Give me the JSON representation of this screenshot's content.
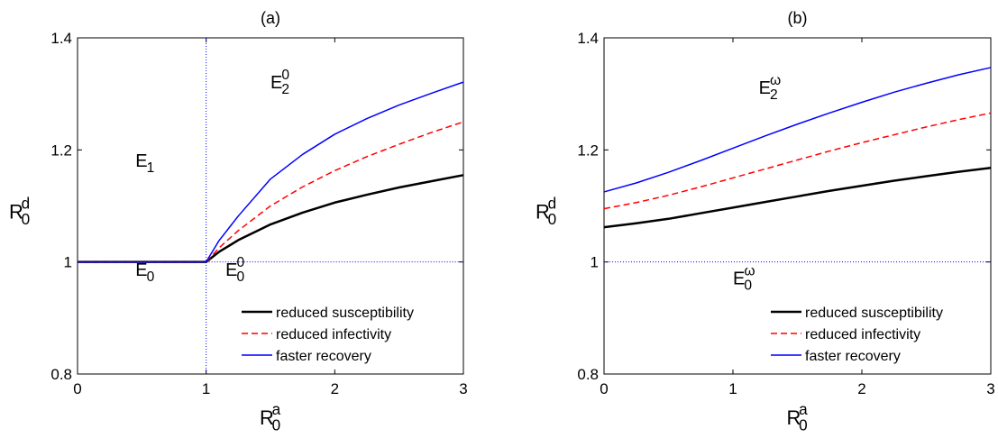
{
  "chart_data": [
    {
      "type": "line",
      "title": "(a)",
      "xlabel": {
        "main": "R",
        "sup": "a",
        "sub": "0"
      },
      "ylabel": {
        "main": "R",
        "sup": "d",
        "sub": "0"
      },
      "xlim": [
        0,
        3
      ],
      "ylim": [
        0.8,
        1.4
      ],
      "xticks": [
        "0",
        "1",
        "2",
        "3"
      ],
      "yticks": [
        "0.8",
        "1",
        "1.2",
        "1.4"
      ],
      "grid": false,
      "legend_position": "bottom-right",
      "reference_lines": [
        {
          "orientation": "vertical",
          "at": 1,
          "style": "dotted",
          "color": "#0000ff"
        },
        {
          "orientation": "horizontal",
          "at": 1,
          "from": 1,
          "style": "dotted",
          "color": "#0000ff"
        }
      ],
      "region_labels": [
        {
          "main": "E",
          "sub": "1",
          "sup": "",
          "x": 0.45,
          "y": 1.17
        },
        {
          "main": "E",
          "sub": "2",
          "sup": "0",
          "x": 1.5,
          "y": 1.31
        },
        {
          "main": "E",
          "sub": "0",
          "sup": "",
          "x": 0.45,
          "y": 0.975
        },
        {
          "main": "E",
          "sub": "0",
          "sup": "0",
          "x": 1.15,
          "y": 0.975
        }
      ],
      "series": [
        {
          "name": "reduced susceptibility",
          "color": "#000000",
          "style": "solid",
          "width": 2.5,
          "x": [
            0,
            1,
            1.1,
            1.25,
            1.5,
            1.75,
            2.0,
            2.25,
            2.5,
            2.75,
            3.0
          ],
          "y": [
            1.0,
            1.0,
            1.018,
            1.039,
            1.067,
            1.088,
            1.106,
            1.12,
            1.133,
            1.144,
            1.155
          ]
        },
        {
          "name": "reduced infectivity",
          "color": "#ff0000",
          "style": "dashed",
          "width": 1.5,
          "x": [
            0,
            1,
            1.1,
            1.25,
            1.5,
            1.75,
            2.0,
            2.25,
            2.5,
            2.75,
            3.0
          ],
          "y": [
            1.0,
            1.0,
            1.025,
            1.056,
            1.1,
            1.134,
            1.163,
            1.188,
            1.21,
            1.231,
            1.25
          ]
        },
        {
          "name": "faster recovery",
          "color": "#0000ff",
          "style": "solid",
          "width": 1.5,
          "x": [
            0,
            1,
            1.1,
            1.25,
            1.5,
            1.75,
            2.0,
            2.25,
            2.5,
            2.75,
            3.0
          ],
          "y": [
            1.0,
            1.0,
            1.038,
            1.082,
            1.148,
            1.192,
            1.228,
            1.256,
            1.28,
            1.301,
            1.321
          ]
        }
      ]
    },
    {
      "type": "line",
      "title": "(b)",
      "xlabel": {
        "main": "R",
        "sup": "a",
        "sub": "0"
      },
      "ylabel": {
        "main": "R",
        "sup": "d",
        "sub": "0"
      },
      "xlim": [
        0,
        3
      ],
      "ylim": [
        0.8,
        1.4
      ],
      "xticks": [
        "0",
        "1",
        "2",
        "3"
      ],
      "yticks": [
        "0.8",
        "1",
        "1.2",
        "1.4"
      ],
      "grid": false,
      "legend_position": "bottom-right",
      "reference_lines": [
        {
          "orientation": "horizontal",
          "at": 1,
          "from": 0,
          "style": "dotted",
          "color": "#0000ff"
        }
      ],
      "region_labels": [
        {
          "main": "E",
          "sub": "2",
          "sup": "ω",
          "x": 1.2,
          "y": 1.3
        },
        {
          "main": "E",
          "sub": "0",
          "sup": "ω",
          "x": 1.0,
          "y": 0.96
        }
      ],
      "series": [
        {
          "name": "reduced susceptibility",
          "color": "#000000",
          "style": "solid",
          "width": 2.5,
          "x": [
            0,
            0.25,
            0.5,
            0.75,
            1.0,
            1.25,
            1.5,
            1.75,
            2.0,
            2.25,
            2.5,
            2.75,
            3.0
          ],
          "y": [
            1.062,
            1.069,
            1.077,
            1.087,
            1.097,
            1.107,
            1.117,
            1.127,
            1.136,
            1.145,
            1.153,
            1.161,
            1.168
          ]
        },
        {
          "name": "reduced infectivity",
          "color": "#ff0000",
          "style": "dashed",
          "width": 1.5,
          "x": [
            0,
            0.25,
            0.5,
            0.75,
            1.0,
            1.25,
            1.5,
            1.75,
            2.0,
            2.25,
            2.5,
            2.75,
            3.0
          ],
          "y": [
            1.095,
            1.106,
            1.119,
            1.134,
            1.15,
            1.166,
            1.182,
            1.198,
            1.213,
            1.227,
            1.241,
            1.254,
            1.266
          ]
        },
        {
          "name": "faster recovery",
          "color": "#0000ff",
          "style": "solid",
          "width": 1.5,
          "x": [
            0,
            0.25,
            0.5,
            0.75,
            1.0,
            1.25,
            1.5,
            1.75,
            2.0,
            2.25,
            2.5,
            2.75,
            3.0
          ],
          "y": [
            1.125,
            1.141,
            1.16,
            1.181,
            1.203,
            1.225,
            1.246,
            1.266,
            1.285,
            1.303,
            1.319,
            1.334,
            1.347
          ]
        }
      ]
    }
  ]
}
